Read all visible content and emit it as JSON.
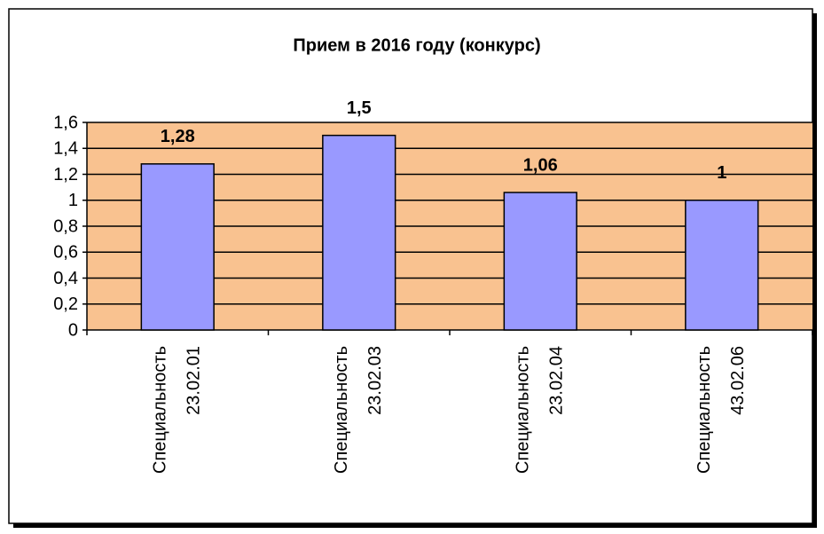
{
  "chart_data": {
    "type": "bar",
    "title": "Прием в 2016 году (конкурс)",
    "categories": [
      "Специальность 23.02.01",
      "Специальность 23.02.03",
      "Специальность 23.02.04",
      "Специальность 43.02.06"
    ],
    "values": [
      1.28,
      1.5,
      1.06,
      1
    ],
    "value_labels": [
      "1,28",
      "1,5",
      "1,06",
      "1"
    ],
    "color": "#9999ff",
    "plot_background": "#f9c290",
    "ylim": [
      0,
      1.6
    ],
    "yticks": [
      0,
      {
        "value": 0.2,
        "label": "0,2"
      },
      {
        "value": 0.4,
        "label": "0,4"
      },
      {
        "value": 0.6,
        "label": "0,6"
      },
      {
        "value": 0.8,
        "label": "0,8"
      },
      1,
      {
        "value": 1.2,
        "label": "1,2"
      },
      {
        "value": 1.4,
        "label": "1,4"
      },
      {
        "value": 1.6,
        "label": "1,6"
      }
    ],
    "grid": true
  }
}
